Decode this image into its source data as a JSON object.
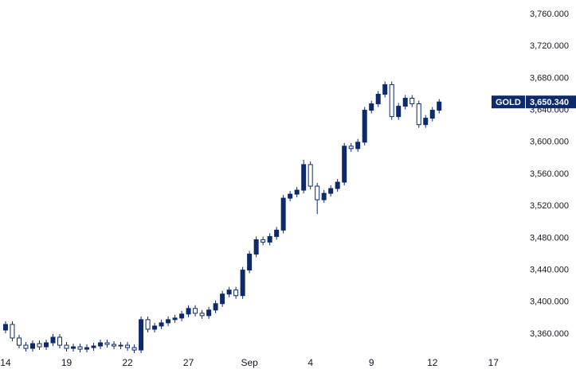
{
  "chart_data": {
    "type": "candlestick",
    "symbol": "GOLD",
    "last_price": {
      "value": 3650.34,
      "label": "3,650.340"
    },
    "up_color": "#0d2a6b",
    "down_color": "#ffffff",
    "edge_color": "#0d2a6b",
    "x": [
      0,
      1,
      2,
      3,
      4,
      5,
      6,
      7,
      8,
      9,
      10,
      11,
      12,
      13,
      14,
      15,
      16,
      17,
      18,
      19,
      20,
      21,
      22,
      23,
      24,
      25,
      26,
      27,
      28,
      29,
      30,
      31,
      32,
      33,
      34,
      35,
      36,
      37,
      38,
      39,
      40,
      41,
      42,
      43,
      44,
      45,
      46,
      47,
      48,
      49,
      50,
      51,
      52,
      53,
      54,
      55,
      56,
      57,
      58,
      59,
      60,
      61,
      62,
      63,
      64
    ],
    "open": [
      3365,
      3372,
      3355,
      3346,
      3342,
      3348,
      3344,
      3349,
      3356,
      3346,
      3342,
      3344,
      3341,
      3343,
      3345,
      3349,
      3347,
      3345,
      3346,
      3343,
      3340,
      3378,
      3366,
      3370,
      3374,
      3378,
      3380,
      3385,
      3392,
      3386,
      3383,
      3390,
      3398,
      3410,
      3415,
      3408,
      3440,
      3460,
      3478,
      3475,
      3482,
      3490,
      3530,
      3535,
      3540,
      3572,
      3545,
      3528,
      3536,
      3542,
      3550,
      3595,
      3592,
      3600,
      3640,
      3648,
      3660,
      3672,
      3632,
      3645,
      3655,
      3648,
      3622,
      3630,
      3640
    ],
    "high": [
      3376,
      3376,
      3359,
      3350,
      3352,
      3352,
      3353,
      3360,
      3360,
      3350,
      3348,
      3348,
      3347,
      3349,
      3353,
      3353,
      3351,
      3350,
      3350,
      3347,
      3382,
      3382,
      3374,
      3378,
      3382,
      3384,
      3389,
      3396,
      3396,
      3390,
      3394,
      3402,
      3414,
      3419,
      3419,
      3444,
      3464,
      3482,
      3482,
      3486,
      3494,
      3534,
      3539,
      3544,
      3578,
      3576,
      3549,
      3540,
      3546,
      3554,
      3599,
      3599,
      3604,
      3644,
      3652,
      3664,
      3676,
      3676,
      3649,
      3659,
      3659,
      3652,
      3634,
      3644,
      3654
    ],
    "low": [
      3361,
      3351,
      3342,
      3338,
      3338,
      3340,
      3340,
      3345,
      3342,
      3338,
      3338,
      3337,
      3337,
      3339,
      3341,
      3343,
      3341,
      3341,
      3339,
      3336,
      3336,
      3362,
      3362,
      3366,
      3370,
      3374,
      3376,
      3381,
      3382,
      3379,
      3379,
      3386,
      3394,
      3406,
      3404,
      3404,
      3436,
      3456,
      3471,
      3471,
      3478,
      3486,
      3526,
      3531,
      3536,
      3541,
      3510,
      3524,
      3532,
      3538,
      3546,
      3588,
      3588,
      3596,
      3636,
      3644,
      3656,
      3628,
      3628,
      3641,
      3644,
      3618,
      3618,
      3626,
      3636
    ],
    "close": [
      3372,
      3355,
      3346,
      3342,
      3348,
      3344,
      3349,
      3356,
      3346,
      3342,
      3344,
      3341,
      3343,
      3345,
      3349,
      3347,
      3345,
      3346,
      3343,
      3340,
      3378,
      3366,
      3370,
      3374,
      3378,
      3380,
      3385,
      3392,
      3386,
      3383,
      3390,
      3398,
      3410,
      3415,
      3408,
      3440,
      3460,
      3478,
      3475,
      3482,
      3490,
      3530,
      3535,
      3540,
      3572,
      3545,
      3528,
      3536,
      3542,
      3550,
      3595,
      3592,
      3600,
      3640,
      3648,
      3660,
      3672,
      3632,
      3645,
      3655,
      3648,
      3622,
      3630,
      3640,
      3650.34
    ],
    "xlim": [
      -0.82,
      76.2
    ],
    "xticks": [
      {
        "value": 0,
        "label": "14"
      },
      {
        "value": 9,
        "label": "19"
      },
      {
        "value": 18,
        "label": "22"
      },
      {
        "value": 27,
        "label": "27"
      },
      {
        "value": 36,
        "label": "Sep"
      },
      {
        "value": 45,
        "label": "4"
      },
      {
        "value": 54,
        "label": "9"
      },
      {
        "value": 63,
        "label": "12"
      },
      {
        "value": 72,
        "label": "17"
      }
    ],
    "ylim": [
      3335.1,
      3777.9
    ],
    "yticks": [
      {
        "value": 3360,
        "label": "3,360.000"
      },
      {
        "value": 3400,
        "label": "3,400.000"
      },
      {
        "value": 3440,
        "label": "3,440.000"
      },
      {
        "value": 3480,
        "label": "3,480.000"
      },
      {
        "value": 3520,
        "label": "3,520.000"
      },
      {
        "value": 3560,
        "label": "3,560.000"
      },
      {
        "value": 3600,
        "label": "3,600.000"
      },
      {
        "value": 3640,
        "label": "3,640.000"
      },
      {
        "value": 3680,
        "label": "3,680.000"
      },
      {
        "value": 3720,
        "label": "3,720.000"
      },
      {
        "value": 3760,
        "label": "3,760.000"
      }
    ]
  }
}
